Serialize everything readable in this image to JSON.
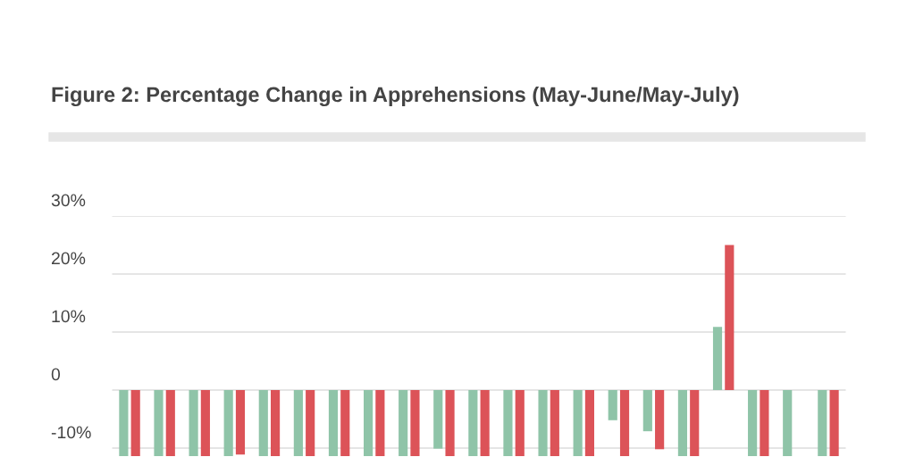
{
  "chart_data": {
    "type": "bar",
    "title": "Figure 2: Percentage Change in Apprehensions (May-June/May-July)",
    "categories": [
      null,
      null,
      null,
      null,
      null,
      null,
      null,
      null,
      null,
      null,
      null,
      null,
      null,
      null,
      null,
      null,
      null,
      null,
      null,
      null,
      null
    ],
    "series": [
      {
        "color": "#8fc4a8",
        "values": [
          -11.4,
          -11.4,
          -11.4,
          -11.4,
          -11.4,
          -11.4,
          -11.4,
          -11.4,
          -11.4,
          -10.1,
          -11.4,
          -11.4,
          -11.4,
          -11.4,
          -5.2,
          -7.1,
          -11.4,
          10.9,
          -11.4,
          -11.4,
          -11.4
        ]
      },
      {
        "color": "#dc5358",
        "values": [
          -11.4,
          -11.4,
          -11.4,
          -11.1,
          -11.4,
          -11.4,
          -11.4,
          -11.4,
          -11.4,
          -11.4,
          -11.4,
          -11.4,
          -11.4,
          -11.4,
          -11.4,
          -10.2,
          -11.4,
          25.0,
          -11.4,
          null,
          -11.4
        ]
      }
    ],
    "ylim": [
      -11.5,
      30
    ],
    "yticks": [
      {
        "value": -10,
        "label": "-10%"
      },
      0,
      {
        "value": 10,
        "label": "10%"
      },
      {
        "value": 20,
        "label": "20%"
      },
      {
        "value": 30,
        "label": "30%"
      }
    ],
    "grid": "y"
  }
}
